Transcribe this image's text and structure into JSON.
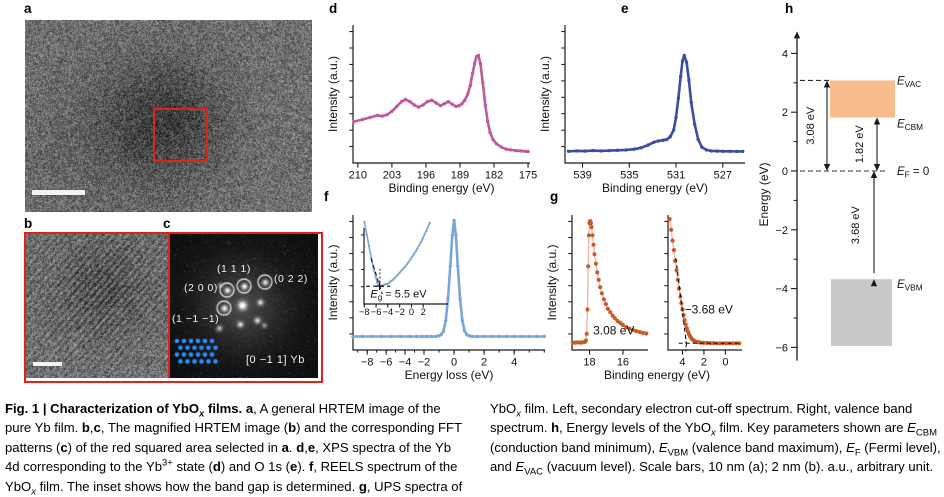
{
  "figure_label": "Fig. 1",
  "colors": {
    "accent_red": "#e3211c",
    "xps_yb4d_curve": "#bf5a9d",
    "xps_o1s_curve": "#3c4da3",
    "reels_curve": "#7aa6d6",
    "ups_marker": "#c85c28",
    "ups_line": "#f2b4a8",
    "conduction_box": "#f7bd8d",
    "valence_box": "#c9c9c9",
    "fft_dot_blue": "#2f8fff",
    "axis": "#1a1a1a"
  },
  "panels": {
    "a": {
      "label": "a"
    },
    "b": {
      "label": "b"
    },
    "c": {
      "label": "c",
      "spot_labels": [
        "(1 1 1)",
        "(0 2 2)",
        "(2 0 0)",
        "(1 −1 −1)"
      ],
      "zone_label": "[0 −1 1] Yb"
    },
    "d": {
      "label": "d"
    },
    "e": {
      "label": "e"
    },
    "f": {
      "label": "f"
    },
    "g": {
      "label": "g"
    },
    "h": {
      "label": "h"
    }
  },
  "chart_data": [
    {
      "id": "d",
      "type": "line",
      "series_name": "Yb 4d XPS spectrum",
      "color": "#bf5a9d",
      "xlabel": "Binding energy (eV)",
      "ylabel": "Intensity (a.u.)",
      "xlim": [
        211,
        174.6
      ],
      "xticks": [
        210,
        203,
        196,
        189,
        182,
        175
      ],
      "x": [
        210.8,
        209,
        207.5,
        206,
        205,
        204,
        203,
        202,
        201,
        200.2,
        199.3,
        198.4,
        197.5,
        196.6,
        195.7,
        194.8,
        193.9,
        193,
        192.2,
        191.4,
        190.6,
        189.8,
        189.2,
        188.6,
        188,
        187.4,
        186.9,
        186.4,
        186,
        185.6,
        185.2,
        184.8,
        184.3,
        183.8,
        183.3,
        182.8,
        182.2,
        181.5,
        180.5,
        179.5,
        178.5,
        177.5,
        176.5,
        175.5,
        175
      ],
      "y": [
        0.3,
        0.315,
        0.33,
        0.345,
        0.34,
        0.35,
        0.375,
        0.41,
        0.445,
        0.46,
        0.445,
        0.42,
        0.405,
        0.42,
        0.445,
        0.455,
        0.435,
        0.415,
        0.43,
        0.445,
        0.425,
        0.41,
        0.415,
        0.43,
        0.455,
        0.5,
        0.56,
        0.65,
        0.72,
        0.77,
        0.78,
        0.72,
        0.58,
        0.42,
        0.3,
        0.22,
        0.17,
        0.14,
        0.115,
        0.1,
        0.095,
        0.09,
        0.088,
        0.085,
        0.084
      ]
    },
    {
      "id": "e",
      "type": "line",
      "series_name": "O 1s XPS spectrum",
      "color": "#3c4da3",
      "xlabel": "Binding energy (eV)",
      "ylabel": "Intensity (a.u.)",
      "xlim": [
        540.5,
        525.1
      ],
      "xticks": [
        539,
        535,
        531,
        527
      ],
      "x": [
        540.2,
        539.5,
        538.8,
        538.1,
        537.4,
        536.7,
        536,
        535.3,
        534.6,
        534,
        533.4,
        532.9,
        532.5,
        532.1,
        531.8,
        531.5,
        531.2,
        531,
        530.8,
        530.6,
        530.45,
        530.3,
        530.1,
        529.9,
        529.7,
        529.4,
        529.1,
        528.8,
        528.4,
        528,
        527.5,
        527,
        526.4,
        525.8,
        525.3
      ],
      "y": [
        0.085,
        0.088,
        0.086,
        0.09,
        0.088,
        0.09,
        0.092,
        0.095,
        0.1,
        0.11,
        0.13,
        0.15,
        0.16,
        0.165,
        0.17,
        0.19,
        0.24,
        0.33,
        0.47,
        0.63,
        0.74,
        0.78,
        0.73,
        0.6,
        0.44,
        0.28,
        0.17,
        0.115,
        0.095,
        0.088,
        0.086,
        0.085,
        0.085,
        0.084,
        0.084
      ]
    },
    {
      "id": "f",
      "type": "line",
      "series_name": "REELS spectrum",
      "color": "#7aa6d6",
      "xlabel": "Energy loss (eV)",
      "ylabel": "Intensity (a.u.)",
      "xlim": [
        -9.5,
        -2,
        6.05
      ],
      "xticks": [
        -8,
        -6,
        -4,
        -2,
        0,
        2,
        4
      ],
      "xminor": [
        -9,
        -8,
        -7,
        -6,
        -5,
        -4,
        -3,
        -2,
        -1,
        0,
        1,
        2,
        3,
        4,
        5,
        6
      ],
      "x": [
        -9.5,
        -8.5,
        -7.5,
        -6.5,
        -5.5,
        -4.5,
        -3.5,
        -2.8,
        -2.2,
        -1.8,
        -1.5,
        -1.2,
        -1.0,
        -0.85,
        -0.7,
        -0.55,
        -0.4,
        -0.25,
        -0.12,
        0,
        0.12,
        0.25,
        0.4,
        0.55,
        0.7,
        0.85,
        1.0,
        1.2,
        1.5,
        2,
        2.5,
        3,
        3.5,
        4,
        4.5,
        5,
        5.5,
        6
      ],
      "y": [
        0.1,
        0.1,
        0.1,
        0.1,
        0.1,
        0.1,
        0.1,
        0.1,
        0.1,
        0.1,
        0.1,
        0.1,
        0.105,
        0.115,
        0.14,
        0.22,
        0.38,
        0.62,
        0.85,
        0.96,
        0.85,
        0.62,
        0.38,
        0.22,
        0.14,
        0.115,
        0.105,
        0.1,
        0.1,
        0.1,
        0.1,
        0.1,
        0.1,
        0.1,
        0.1,
        0.1,
        0.1,
        0.1
      ],
      "inset": {
        "series_name": "REELS band-gap onset (zoom)",
        "xlim": [
          -8.05,
          6.2
        ],
        "xticks": [
          -8,
          -6,
          -4,
          -2,
          0,
          2
        ],
        "x": [
          -8.0,
          -7.6,
          -7.2,
          -6.8,
          -6.4,
          -6.0,
          -5.8,
          -5.6,
          -5.4,
          -5.2,
          -5.0,
          -4.7,
          -4.4,
          -4.1,
          -3.8,
          -3.5,
          -3.2,
          -2.9,
          -2.6,
          -2.3,
          -2.0,
          -1.7,
          -1.4,
          -1.1,
          -0.8,
          -0.5,
          -0.2,
          0.1,
          0.4,
          0.7,
          1.0,
          1.3,
          1.6,
          1.9,
          2.2,
          2.5,
          2.8,
          3.1
        ],
        "y": [
          1.08,
          0.92,
          0.76,
          0.6,
          0.46,
          0.34,
          0.28,
          0.245,
          0.235,
          0.235,
          0.24,
          0.25,
          0.26,
          0.265,
          0.28,
          0.3,
          0.315,
          0.335,
          0.36,
          0.385,
          0.41,
          0.44,
          0.465,
          0.49,
          0.52,
          0.55,
          0.585,
          0.62,
          0.655,
          0.69,
          0.73,
          0.77,
          0.815,
          0.86,
          0.91,
          0.96,
          1.01,
          1.07
        ],
        "band_gap_label": {
          "main": "E",
          "sub": "g",
          "suffix": " = 5.5 eV",
          "x": -2.2,
          "v": 0.085
        },
        "ann": [
          {
            "type": "hline",
            "v": 0.235,
            "x1": -7.7,
            "x2": -3.6
          },
          {
            "type": "line",
            "x1": -6.85,
            "v1": 0.6,
            "x2": -4.95,
            "v2": 0.13
          },
          {
            "type": "vline",
            "x": -5.35,
            "v1": 0.23,
            "v2": 0.46
          },
          {
            "type": "cross",
            "x": -5.4,
            "v": 0.235
          }
        ]
      }
    },
    {
      "id": "g_left",
      "type": "line",
      "series_name": "UPS secondary electron cut-off",
      "color": "#c85c28",
      "line_color": "#f2b4a8",
      "xlabel": "Binding energy (eV)",
      "ylabel": "Intensity (a.u.)",
      "xlim": [
        19.05,
        14.5
      ],
      "xticks": [
        18,
        16
      ],
      "x": [
        19.0,
        18.85,
        18.7,
        18.55,
        18.45,
        18.35,
        18.28,
        18.22,
        18.17,
        18.12,
        18.08,
        18.04,
        18.0,
        17.96,
        17.92,
        17.88,
        17.82,
        17.76,
        17.7,
        17.62,
        17.54,
        17.46,
        17.36,
        17.26,
        17.14,
        17.02,
        16.9,
        16.76,
        16.62,
        16.48,
        16.32,
        16.16,
        16.0,
        15.8,
        15.6,
        15.4,
        15.2,
        15.0,
        14.8,
        14.6
      ],
      "y": [
        0.055,
        0.055,
        0.056,
        0.055,
        0.057,
        0.058,
        0.06,
        0.07,
        0.12,
        0.3,
        0.62,
        0.85,
        0.94,
        0.955,
        0.94,
        0.91,
        0.85,
        0.78,
        0.71,
        0.64,
        0.575,
        0.52,
        0.465,
        0.42,
        0.375,
        0.34,
        0.305,
        0.28,
        0.255,
        0.235,
        0.215,
        0.2,
        0.185,
        0.17,
        0.158,
        0.148,
        0.14,
        0.133,
        0.127,
        0.122
      ],
      "ann": [
        {
          "type": "text",
          "t": "3.08 eV",
          "x": 16.55,
          "v": 0.115,
          "fs": 12
        }
      ]
    },
    {
      "id": "g_right",
      "type": "line",
      "series_name": "UPS valence band spectrum",
      "color": "#c85c28",
      "line_color": "#f2b4a8",
      "xlabel": "Binding energy (eV)",
      "ylabel": "",
      "xlim": [
        5.35,
        -1.55
      ],
      "xticks": [
        4,
        2,
        0
      ],
      "x": [
        5.2,
        5.05,
        4.92,
        4.8,
        4.68,
        4.56,
        4.44,
        4.32,
        4.2,
        4.1,
        4.0,
        3.9,
        3.8,
        3.7,
        3.6,
        3.5,
        3.4,
        3.3,
        3.2,
        3.1,
        3.0,
        2.85,
        2.7,
        2.55,
        2.4,
        2.2,
        2.0,
        1.7,
        1.4,
        1.1,
        0.8,
        0.5,
        0.2,
        -0.1,
        -0.4,
        -0.7,
        -1.0,
        -1.3
      ],
      "y": [
        0.97,
        0.89,
        0.81,
        0.74,
        0.66,
        0.59,
        0.52,
        0.455,
        0.395,
        0.345,
        0.3,
        0.26,
        0.222,
        0.19,
        0.162,
        0.138,
        0.118,
        0.102,
        0.09,
        0.08,
        0.073,
        0.066,
        0.061,
        0.058,
        0.056,
        0.054,
        0.053,
        0.052,
        0.051,
        0.051,
        0.05,
        0.05,
        0.05,
        0.05,
        0.05,
        0.05,
        0.05,
        0.05
      ],
      "ann": [
        {
          "type": "line",
          "x1": 4.62,
          "v1": 0.68,
          "x2": 3.58,
          "v2": 0.01
        },
        {
          "type": "hline",
          "v": 0.05,
          "x1": 4.35,
          "x2": -1.35
        },
        {
          "type": "vline",
          "x": 3.68,
          "v1": -0.01,
          "v2": 0.09
        },
        {
          "type": "text",
          "t": "−3.68 eV",
          "x": 1.55,
          "v": 0.27,
          "fs": 12
        }
      ]
    },
    {
      "id": "h",
      "type": "energy_diagram",
      "series_name": "Energy levels of the YbOx film",
      "ylabel": "Energy (eV)",
      "ylim": [
        -6.45,
        4.75
      ],
      "yticks": [
        4,
        2,
        0,
        -2,
        -4,
        -6
      ],
      "yminor": [
        3,
        1,
        -1,
        -3,
        -5
      ],
      "levels": {
        "evac": 3.08,
        "ecbm": 1.82,
        "ef": 0,
        "evbm": -3.68
      },
      "boxes": [
        {
          "name": "conduction-band-box",
          "color": "#f7bd8d",
          "top": 3.08,
          "bottom": 1.82
        },
        {
          "name": "valence-band-box",
          "color": "#c9c9c9",
          "top": -3.68,
          "bottom": -5.95
        }
      ],
      "arrows": [
        {
          "label": "3.08 eV",
          "from": 0,
          "to": 3.08
        },
        {
          "label": "1.82 eV",
          "from": 0,
          "to": 1.82
        },
        {
          "label": "3.68 eV",
          "from": 0,
          "to": -3.68
        }
      ],
      "level_labels": [
        {
          "main": "E",
          "sub": "VAC",
          "suffix": "",
          "level": "evac"
        },
        {
          "main": "E",
          "sub": "CBM",
          "suffix": "",
          "level": "ecbm"
        },
        {
          "main": "E",
          "sub": "F",
          "suffix": " = 0",
          "level": "ef"
        },
        {
          "main": "E",
          "sub": "VBM",
          "suffix": "",
          "level": "evbm"
        }
      ]
    }
  ],
  "caption": {
    "left": [
      {
        "t": "Fig. 1 | Characterization of YbO",
        "b": true
      },
      {
        "t": "x",
        "b": true,
        "i": true,
        "sub": true
      },
      {
        "t": " films. ",
        "b": true
      },
      {
        "t": "a",
        "b": true
      },
      {
        "t": ", A general HRTEM image of the pure Yb film. "
      },
      {
        "t": "b",
        "b": true
      },
      {
        "t": ","
      },
      {
        "t": "c",
        "b": true
      },
      {
        "t": ", The magnified HRTEM image ("
      },
      {
        "t": "b",
        "b": true
      },
      {
        "t": ") and the corresponding FFT patterns ("
      },
      {
        "t": "c",
        "b": true
      },
      {
        "t": ") of the red squared area selected in "
      },
      {
        "t": "a",
        "b": true
      },
      {
        "t": ". "
      },
      {
        "t": "d",
        "b": true
      },
      {
        "t": ","
      },
      {
        "t": "e",
        "b": true
      },
      {
        "t": ", XPS spectra of the Yb 4d corresponding to the Yb"
      },
      {
        "t": "3+",
        "sup": true
      },
      {
        "t": " state ("
      },
      {
        "t": "d",
        "b": true
      },
      {
        "t": ") and O 1s ("
      },
      {
        "t": "e",
        "b": true
      },
      {
        "t": "). "
      },
      {
        "t": "f",
        "b": true
      },
      {
        "t": ", REELS spectrum of the YbO"
      },
      {
        "t": "x",
        "i": true,
        "sub": true
      },
      {
        "t": " film. The inset shows how the band gap is determined. "
      },
      {
        "t": "g",
        "b": true
      },
      {
        "t": ", UPS spectra of the"
      }
    ],
    "right": [
      {
        "t": "YbO"
      },
      {
        "t": "x",
        "i": true,
        "sub": true
      },
      {
        "t": " film. Left, secondary electron cut-off spectrum. Right, valence band spectrum. "
      },
      {
        "t": "h",
        "b": true
      },
      {
        "t": ", Energy levels of the YbO"
      },
      {
        "t": "x",
        "i": true,
        "sub": true
      },
      {
        "t": " film. Key parameters shown are "
      },
      {
        "t": "E",
        "i": true
      },
      {
        "t": "CBM",
        "sub": true
      },
      {
        "t": " (conduction band minimum), "
      },
      {
        "t": "E",
        "i": true
      },
      {
        "t": "VBM",
        "sub": true
      },
      {
        "t": " (valence band maximum), "
      },
      {
        "t": "E",
        "i": true
      },
      {
        "t": "F",
        "sub": true
      },
      {
        "t": " (Fermi level), and "
      },
      {
        "t": "E",
        "i": true
      },
      {
        "t": "VAC",
        "sub": true
      },
      {
        "t": " (vacuum level). Scale bars, 10 nm (a); 2 nm (b). a.u., arbitrary unit."
      }
    ]
  }
}
